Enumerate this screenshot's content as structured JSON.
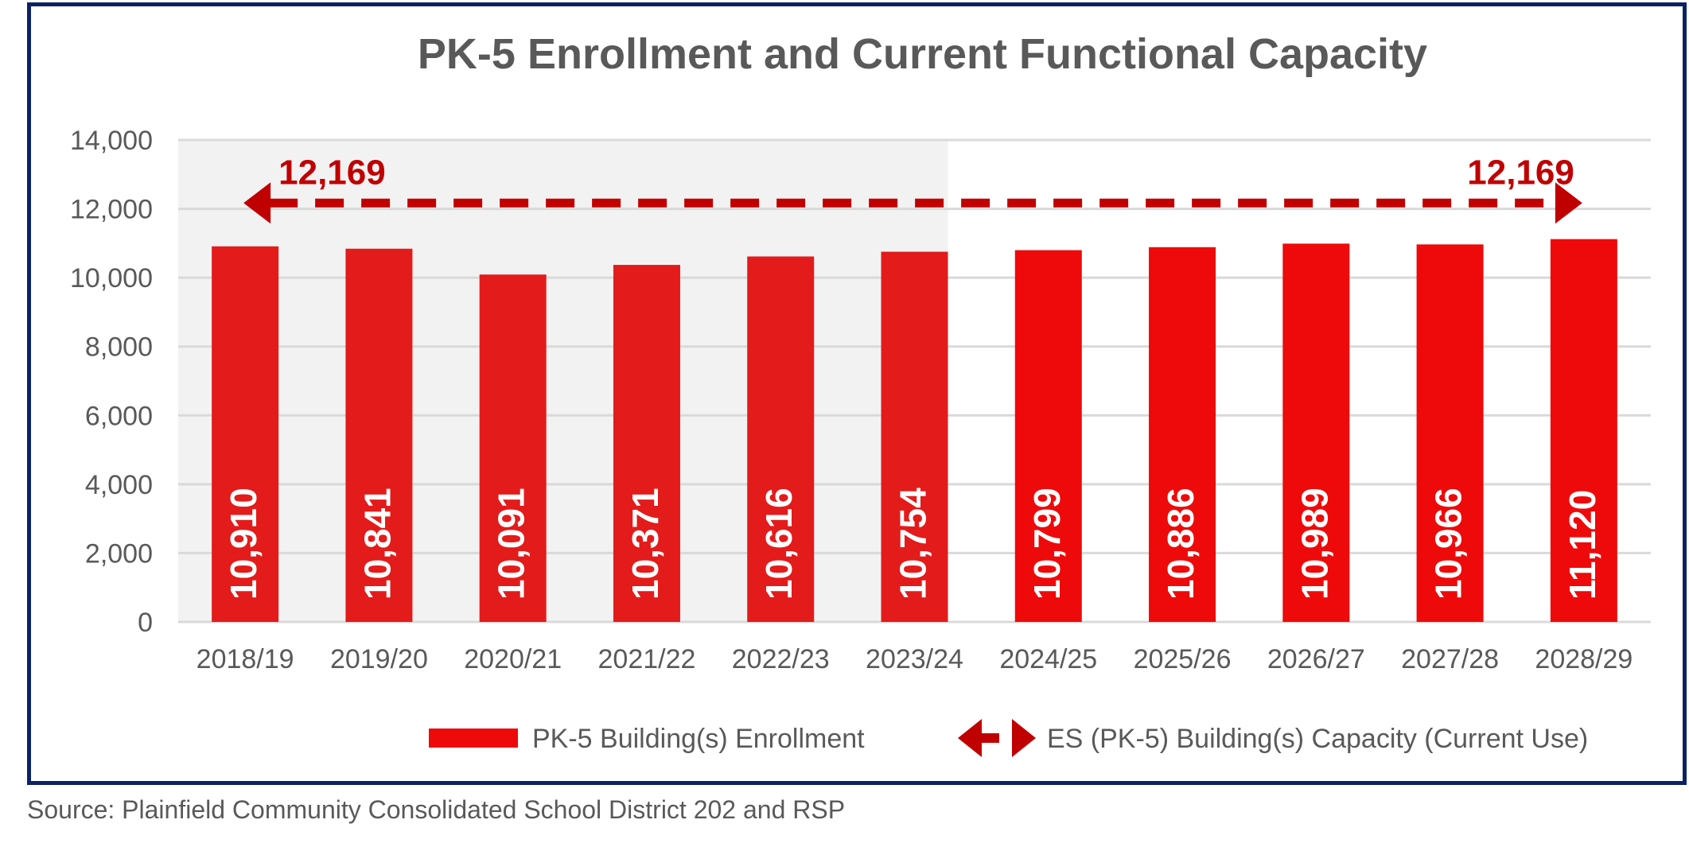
{
  "chart_data": {
    "type": "bar",
    "title": "PK-5 Enrollment and Current Functional Capacity",
    "xlabel": "",
    "ylabel": "",
    "categories": [
      "2018/19",
      "2019/20",
      "2020/21",
      "2021/22",
      "2022/23",
      "2023/24",
      "2024/25",
      "2025/26",
      "2026/27",
      "2027/28",
      "2028/29"
    ],
    "series": [
      {
        "name": "PK-5  Building(s) Enrollment",
        "values": [
          10910,
          10841,
          10091,
          10371,
          10616,
          10754,
          10799,
          10886,
          10989,
          10966,
          11120
        ],
        "data_labels": [
          "10,910",
          "10,841",
          "10,091",
          "10,371",
          "10,616",
          "10,754",
          "10,799",
          "10,886",
          "10,989",
          "10,966",
          "11,120"
        ]
      }
    ],
    "capacity": {
      "name": "ES (PK-5) Building(s) Capacity (Current Use)",
      "value": 12169,
      "label_left": "12,169",
      "label_right": "12,169"
    },
    "ylim": [
      0,
      14000
    ],
    "yticks": [
      0,
      2000,
      4000,
      6000,
      8000,
      10000,
      12000,
      14000
    ],
    "ytick_labels": [
      "0",
      "2,000",
      "4,000",
      "6,000",
      "8,000",
      "10,000",
      "12,000",
      "14,000"
    ],
    "historical_shaded_through": "2023/24",
    "grid": true,
    "legend_position": "bottom",
    "colors": {
      "bar_historical": "#e31b1b",
      "bar_projected": "#ee0a0a",
      "capacity_line": "#c00000",
      "shading": "#f2f2f2",
      "grid": "#d9d9d9",
      "title": "#595959",
      "tick": "#595959"
    }
  },
  "source_note": "Source: Plainfield Community Consolidated School District 202 and RSP"
}
